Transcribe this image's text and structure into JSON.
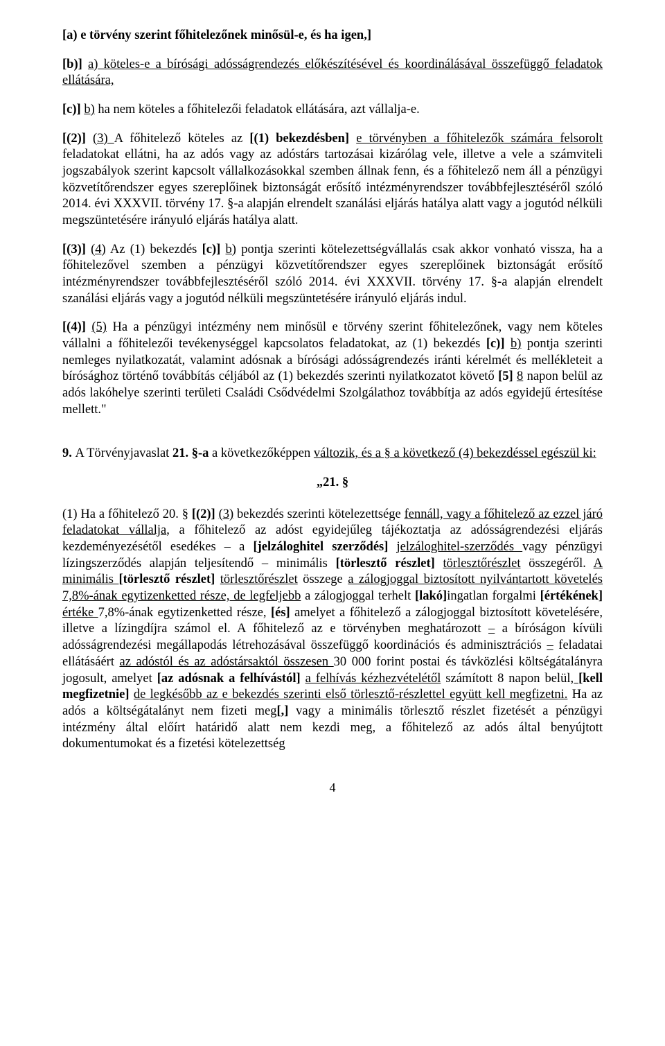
{
  "p1": {
    "a": "[a) e törvény szerint főhitelezőnek minősül-e, és ha igen,]"
  },
  "p2": {
    "a": "[b)] ",
    "b": "a)",
    "c": " köteles-e a bírósági adósságrendezés előkészítésével és koordinálásával összefüggő feladatok ellátására,"
  },
  "p3": {
    "a": "[c)] ",
    "b": "b)",
    "c": " ha nem köteles a főhitelezői feladatok ellátására, azt vállalja-e."
  },
  "p4": {
    "a": "[(2)] ",
    "b": "(3) ",
    "c": "A főhitelező köteles az ",
    "d": "[(1) bekezdésben]",
    "e": " ",
    "f": "e törvényben a főhitelezők számára felsorolt",
    "g": " feladatokat ellátni, ha az adós vagy az adóstárs tartozásai kizárólag vele, illetve a vele a számviteli jogszabályok szerint kapcsolt vállalkozásokkal szemben állnak fenn, és a főhitelező nem áll a pénzügyi közvetítőrendszer egyes szereplőinek biztonságát erősítő intézményrendszer továbbfejlesztéséről szóló 2014. évi XXXVII. törvény 17. §-a alapján elrendelt szanálási eljárás hatálya alatt vagy a jogutód nélküli megszüntetésére irányuló eljárás hatálya alatt."
  },
  "p5": {
    "a": "[(3)] ",
    "b": "(4)",
    "c": " Az (1) bekezdés ",
    "d": "[c)]",
    "e": " ",
    "f": "b)",
    "g": " pontja szerinti kötelezettségvállalás csak akkor vonható vissza, ha a főhitelezővel szemben a pénzügyi közvetítőrendszer egyes szereplőinek biztonságát erősítő intézményrendszer továbbfejlesztéséről szóló 2014. évi XXXVII. törvény 17. §-a alapján elrendelt szanálási eljárás vagy a jogutód nélküli megszüntetésére irányuló eljárás indul."
  },
  "p6": {
    "a": "[(4)] ",
    "b": "(5)",
    "c": " Ha a pénzügyi intézmény nem minősül e törvény szerint főhitelezőnek, vagy nem köteles vállalni a főhitelezői tevékenységgel kapcsolatos feladatokat, az (1) bekezdés ",
    "d": "[c)]",
    "e": " ",
    "f": "b)",
    "g": " pontja szerinti nemleges nyilatkozatát, valamint adósnak a bírósági adósságrendezés iránti kérelmét és mellékleteit a bírósághoz történő továbbítás céljából az (1) bekezdés szerinti nyilatkozatot követő ",
    "h": "[5]",
    "i": " ",
    "j": "8",
    "k": " napon belül az adós lakóhelye szerinti területi Családi Csődvédelmi Szolgálathoz továbbítja az adós egyidejű értesítése mellett.\""
  },
  "sec9": {
    "a": "9. ",
    "b": "A Törvényjavaslat ",
    "c": "21. §-a ",
    "d": "a következőképpen ",
    "e": "változik, és a § a következő (4) bekezdéssel egészül ki:"
  },
  "center21": "„21. §",
  "p7": {
    "a": "(1) Ha a főhitelező 20. § ",
    "b": "[(2)]",
    "c": " ",
    "d": "(3)",
    "e": " bekezdés szerinti kötelezettsége ",
    "f": "fennáll, vagy a főhitelező az ezzel járó feladatokat vállalja",
    "g": ", a főhitelező az adóst egyidejűleg tájékoztatja az adósságrendezési eljárás kezdeményezésétől esedékes – a ",
    "h": "[jelzáloghitel szerződés]",
    "i": " ",
    "j": "jelzáloghitel-szerződés ",
    "k": "vagy pénzügyi lízingszerződés alapján teljesítendő – minimális ",
    "l": "[törlesztő részlet]",
    "m": " ",
    "n": "törlesztőrészlet",
    "o": " összegéről. ",
    "p": "A minimális ",
    "q": "[törlesztő részlet]",
    "r": " ",
    "s": "törlesztőrészlet",
    "t": " összege ",
    "u": "a zálogjoggal biztosított nyilvántartott követelés 7,8%-ának egytizenketted része, de legfeljebb",
    "v": " a zálogjoggal terhelt ",
    "w": "[lakó]",
    "x": "ingatlan forgalmi ",
    "y": "[értékének]",
    "z": " ",
    "aa": "értéke ",
    "ab": "7,8%-ának egytizenketted része, ",
    "ac": "[és]",
    "ad": " amelyet a főhitelező a zálogjoggal biztosított követelésére, illetve a lízingdíjra számol el. A főhitelező az e törvényben meghatározott ",
    "ae": "–",
    "af": " a bíróságon kívüli adósságrendezési megállapodás létrehozásával összefüggő koordinációs és adminisztrációs ",
    "ag": "–",
    "ah": " feladatai ellátásáért ",
    "ai": "az adóstól és az adóstársaktól összesen ",
    "aj": "30 000 forint postai és távközlési költségátalányra jogosult, amelyet ",
    "ak": "[az adósnak a felhívástól]",
    "al": " ",
    "am": "a felhívás kézhezvételétől",
    "an": " számított 8 napon belül",
    "ao": ", ",
    "ap": "[kell megfizetnie]",
    "aq": " ",
    "ar": "de legkésőbb az e bekezdés szerinti első törlesztő-részlettel együtt kell megfizetni.",
    "as": " Ha az adós a költségátalányt nem fizeti meg",
    "at": "[,]",
    "au": " vagy a minimális törlesztő részlet fizetését a pénzügyi intézmény által előírt határidő alatt nem kezdi meg, a főhitelező az adós által benyújtott dokumentumokat és a fizetési kötelezettség"
  },
  "pagenum": "4"
}
